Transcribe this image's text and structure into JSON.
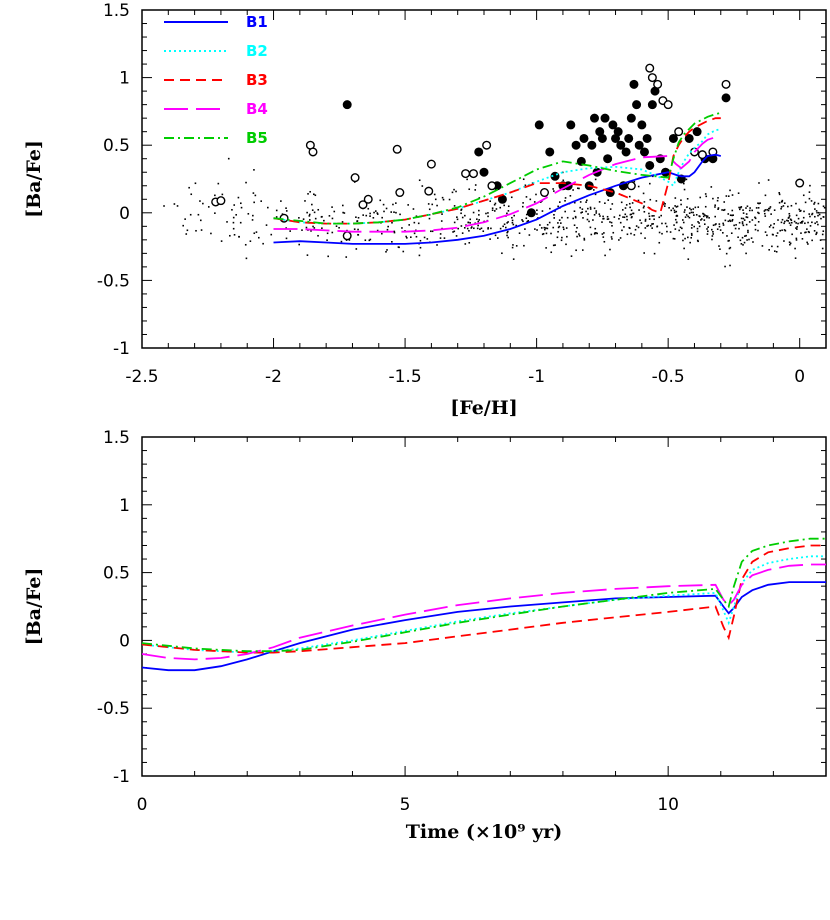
{
  "figure": {
    "width": 830,
    "height": 920
  },
  "chart_data": [
    {
      "type": "scatter",
      "id": "top",
      "title": "",
      "xlabel": "[Fe/H]",
      "ylabel": "[Ba/Fe]",
      "xlim": [
        -2.5,
        0.1
      ],
      "ylim": [
        -1,
        1.5
      ],
      "xticks": [
        -2.5,
        -2,
        -1.5,
        -1,
        -0.5,
        0
      ],
      "xtick_labels": [
        "-2.5",
        "-2",
        "-1.5",
        "-1",
        "-0.5",
        "0"
      ],
      "yticks": [
        -1,
        -0.5,
        0,
        0.5,
        1,
        1.5
      ],
      "ytick_labels": [
        "-1",
        "-0.5",
        "0",
        "0.5",
        "1",
        "1.5"
      ],
      "legend": [
        {
          "name": "B1",
          "color": "#0000ff",
          "dash": "solid"
        },
        {
          "name": "B2",
          "color": "#00ffff",
          "dash": "dotted"
        },
        {
          "name": "B3",
          "color": "#ff0000",
          "dash": "dashed"
        },
        {
          "name": "B4",
          "color": "#ff00ff",
          "dash": "longdash"
        },
        {
          "name": "B5",
          "color": "#00cc00",
          "dash": "dashdot"
        }
      ],
      "series": [
        {
          "name": "B1",
          "x": [
            -2.0,
            -1.9,
            -1.8,
            -1.7,
            -1.6,
            -1.5,
            -1.4,
            -1.3,
            -1.2,
            -1.1,
            -1.0,
            -0.9,
            -0.8,
            -0.7,
            -0.6,
            -0.5,
            -0.47,
            -0.45,
            -0.42,
            -0.4,
            -0.37,
            -0.35,
            -0.32,
            -0.3
          ],
          "y": [
            -0.22,
            -0.21,
            -0.22,
            -0.23,
            -0.23,
            -0.23,
            -0.22,
            -0.2,
            -0.17,
            -0.12,
            -0.05,
            0.05,
            0.13,
            0.2,
            0.26,
            0.3,
            0.28,
            0.27,
            0.27,
            0.3,
            0.38,
            0.42,
            0.43,
            0.42
          ]
        },
        {
          "name": "B2",
          "x": [
            -2.0,
            -1.9,
            -1.8,
            -1.7,
            -1.6,
            -1.5,
            -1.4,
            -1.3,
            -1.2,
            -1.1,
            -1.0,
            -0.9,
            -0.8,
            -0.7,
            -0.6,
            -0.55,
            -0.5,
            -0.48,
            -0.46,
            -0.44,
            -0.42,
            -0.4,
            -0.37,
            -0.35,
            -0.32,
            -0.3
          ],
          "y": [
            -0.04,
            -0.07,
            -0.08,
            -0.08,
            -0.07,
            -0.05,
            -0.01,
            0.03,
            0.09,
            0.15,
            0.23,
            0.3,
            0.33,
            0.34,
            0.32,
            0.28,
            0.23,
            0.2,
            0.3,
            0.38,
            0.44,
            0.48,
            0.53,
            0.58,
            0.61,
            0.62
          ]
        },
        {
          "name": "B3",
          "x": [
            -2.0,
            -1.9,
            -1.8,
            -1.7,
            -1.6,
            -1.5,
            -1.4,
            -1.3,
            -1.2,
            -1.1,
            -1.0,
            -0.9,
            -0.8,
            -0.7,
            -0.6,
            -0.56,
            -0.53,
            -0.5,
            -0.48,
            -0.46,
            -0.44,
            -0.42,
            -0.4,
            -0.37,
            -0.35,
            -0.32,
            -0.3
          ],
          "y": [
            -0.04,
            -0.07,
            -0.08,
            -0.08,
            -0.07,
            -0.05,
            -0.01,
            0.03,
            0.09,
            0.15,
            0.22,
            0.22,
            0.2,
            0.15,
            0.07,
            0.02,
            0.0,
            0.22,
            0.42,
            0.5,
            0.56,
            0.6,
            0.63,
            0.66,
            0.68,
            0.7,
            0.7
          ]
        },
        {
          "name": "B4",
          "x": [
            -2.0,
            -1.9,
            -1.8,
            -1.7,
            -1.6,
            -1.5,
            -1.4,
            -1.3,
            -1.2,
            -1.1,
            -1.0,
            -0.9,
            -0.8,
            -0.7,
            -0.6,
            -0.5,
            -0.47,
            -0.45,
            -0.42,
            -0.4,
            -0.37,
            -0.35,
            -0.32,
            -0.3
          ],
          "y": [
            -0.12,
            -0.12,
            -0.13,
            -0.14,
            -0.14,
            -0.14,
            -0.13,
            -0.11,
            -0.07,
            -0.01,
            0.07,
            0.18,
            0.28,
            0.36,
            0.41,
            0.42,
            0.36,
            0.33,
            0.38,
            0.45,
            0.51,
            0.54,
            0.56,
            0.55
          ]
        },
        {
          "name": "B5",
          "x": [
            -2.0,
            -1.9,
            -1.8,
            -1.7,
            -1.6,
            -1.5,
            -1.4,
            -1.3,
            -1.2,
            -1.1,
            -1.0,
            -0.9,
            -0.8,
            -0.7,
            -0.6,
            -0.5,
            -0.48,
            -0.46,
            -0.44,
            -0.42,
            -0.4,
            -0.37,
            -0.35,
            -0.32,
            -0.3
          ],
          "y": [
            -0.04,
            -0.06,
            -0.08,
            -0.08,
            -0.07,
            -0.05,
            -0.01,
            0.04,
            0.12,
            0.22,
            0.32,
            0.38,
            0.35,
            0.31,
            0.28,
            0.26,
            0.4,
            0.52,
            0.58,
            0.62,
            0.66,
            0.69,
            0.71,
            0.73,
            0.74
          ]
        },
        {
          "name": "filled",
          "marker": "filled-circle",
          "x": [
            -1.72,
            -1.22,
            -1.2,
            -1.15,
            -1.13,
            -1.02,
            -0.99,
            -0.95,
            -0.93,
            -0.9,
            -0.88,
            -0.87,
            -0.85,
            -0.83,
            -0.82,
            -0.8,
            -0.79,
            -0.78,
            -0.77,
            -0.76,
            -0.75,
            -0.74,
            -0.73,
            -0.72,
            -0.71,
            -0.7,
            -0.69,
            -0.68,
            -0.67,
            -0.66,
            -0.65,
            -0.64,
            -0.63,
            -0.62,
            -0.61,
            -0.6,
            -0.59,
            -0.58,
            -0.57,
            -0.56,
            -0.55,
            -0.53,
            -0.51,
            -0.48,
            -0.45,
            -0.42,
            -0.39,
            -0.36,
            -0.33,
            -0.28
          ],
          "y": [
            0.8,
            0.45,
            0.3,
            0.2,
            0.1,
            0.0,
            0.65,
            0.45,
            0.27,
            0.2,
            0.2,
            0.65,
            0.5,
            0.38,
            0.55,
            0.2,
            0.5,
            0.7,
            0.3,
            0.6,
            0.55,
            0.7,
            0.4,
            0.15,
            0.65,
            0.55,
            0.6,
            0.5,
            0.2,
            0.45,
            0.55,
            0.7,
            0.95,
            0.8,
            0.5,
            0.65,
            0.45,
            0.55,
            0.35,
            0.8,
            0.9,
            0.4,
            0.3,
            0.55,
            0.25,
            0.55,
            0.6,
            0.4,
            0.4,
            0.85
          ]
        },
        {
          "name": "open",
          "marker": "open-circle",
          "x": [
            -2.22,
            -2.2,
            -1.96,
            -1.86,
            -1.85,
            -1.72,
            -1.69,
            -1.66,
            -1.64,
            -1.53,
            -1.52,
            -1.41,
            -1.4,
            -1.27,
            -1.24,
            -1.19,
            -1.17,
            -0.97,
            -0.64,
            -0.57,
            -0.56,
            -0.54,
            -0.52,
            -0.5,
            -0.46,
            -0.4,
            -0.37,
            -0.33,
            -0.28,
            0.0
          ],
          "y": [
            0.08,
            0.09,
            -0.04,
            0.5,
            0.45,
            -0.17,
            0.26,
            0.06,
            0.1,
            0.47,
            0.15,
            0.16,
            0.36,
            0.29,
            0.29,
            0.5,
            0.2,
            0.15,
            0.2,
            1.07,
            1.0,
            0.95,
            0.83,
            0.8,
            0.6,
            0.45,
            0.43,
            0.45,
            0.95,
            0.22
          ]
        },
        {
          "name": "dots",
          "marker": "dot",
          "n_points": 900,
          "x_range": [
            -2.5,
            0.1
          ],
          "y_range": [
            -0.75,
            0.8
          ]
        }
      ]
    },
    {
      "type": "line",
      "id": "bottom",
      "title": "",
      "xlabel": "Time (×10⁹ yr)",
      "ylabel": "[Ba/Fe]",
      "xlim": [
        0,
        13
      ],
      "ylim": [
        -1,
        1.5
      ],
      "xticks": [
        0,
        5,
        10
      ],
      "xtick_labels": [
        "0",
        "5",
        "10"
      ],
      "yticks": [
        -1,
        -0.5,
        0,
        0.5,
        1,
        1.5
      ],
      "ytick_labels": [
        "-1",
        "-0.5",
        "0",
        "0.5",
        "1",
        "1.5"
      ],
      "series": [
        {
          "name": "B1",
          "color": "#0000ff",
          "dash": "solid",
          "x": [
            0,
            0.5,
            1,
            1.5,
            2,
            2.5,
            3,
            4,
            5,
            6,
            7,
            8,
            9,
            10,
            10.9,
            11.05,
            11.15,
            11.25,
            11.4,
            11.6,
            11.9,
            12.3,
            12.7,
            13
          ],
          "y": [
            -0.2,
            -0.22,
            -0.22,
            -0.19,
            -0.14,
            -0.08,
            -0.02,
            0.08,
            0.15,
            0.21,
            0.25,
            0.28,
            0.31,
            0.32,
            0.33,
            0.25,
            0.2,
            0.24,
            0.32,
            0.37,
            0.41,
            0.43,
            0.43,
            0.43
          ]
        },
        {
          "name": "B2",
          "color": "#00ffff",
          "dash": "dotted",
          "x": [
            0,
            0.5,
            1,
            1.5,
            2,
            2.5,
            3,
            4,
            5,
            6,
            7,
            8,
            9,
            10,
            10.9,
            11.05,
            11.15,
            11.25,
            11.4,
            11.6,
            11.9,
            12.3,
            12.7,
            13
          ],
          "y": [
            -0.03,
            -0.05,
            -0.07,
            -0.08,
            -0.09,
            -0.08,
            -0.06,
            0.0,
            0.07,
            0.14,
            0.2,
            0.25,
            0.3,
            0.33,
            0.35,
            0.22,
            0.13,
            0.25,
            0.42,
            0.52,
            0.57,
            0.6,
            0.62,
            0.62
          ]
        },
        {
          "name": "B3",
          "color": "#ff0000",
          "dash": "dashed",
          "x": [
            0,
            0.5,
            1,
            1.5,
            2,
            2.5,
            3,
            4,
            5,
            6,
            7,
            8,
            9,
            10,
            10.9,
            11.05,
            11.15,
            11.25,
            11.4,
            11.6,
            11.9,
            12.3,
            12.7,
            13
          ],
          "y": [
            -0.03,
            -0.05,
            -0.07,
            -0.08,
            -0.09,
            -0.09,
            -0.08,
            -0.05,
            -0.02,
            0.03,
            0.08,
            0.13,
            0.17,
            0.21,
            0.25,
            0.1,
            0.02,
            0.18,
            0.45,
            0.58,
            0.65,
            0.68,
            0.7,
            0.7
          ]
        },
        {
          "name": "B4",
          "color": "#ff00ff",
          "dash": "longdash",
          "x": [
            0,
            0.5,
            1,
            1.5,
            2,
            2.5,
            3,
            4,
            5,
            6,
            7,
            8,
            9,
            10,
            10.9,
            11.05,
            11.15,
            11.25,
            11.4,
            11.6,
            11.9,
            12.3,
            12.7,
            13
          ],
          "y": [
            -0.1,
            -0.13,
            -0.14,
            -0.13,
            -0.1,
            -0.05,
            0.02,
            0.11,
            0.19,
            0.26,
            0.31,
            0.35,
            0.38,
            0.4,
            0.41,
            0.3,
            0.26,
            0.3,
            0.41,
            0.48,
            0.52,
            0.55,
            0.56,
            0.56
          ]
        },
        {
          "name": "B5",
          "color": "#00cc00",
          "dash": "dashdot",
          "x": [
            0,
            0.5,
            1,
            1.5,
            2,
            2.5,
            3,
            4,
            5,
            6,
            7,
            8,
            9,
            10,
            10.9,
            11.05,
            11.15,
            11.25,
            11.4,
            11.6,
            11.9,
            12.3,
            12.7,
            13
          ],
          "y": [
            -0.02,
            -0.04,
            -0.06,
            -0.07,
            -0.08,
            -0.08,
            -0.07,
            -0.01,
            0.06,
            0.13,
            0.19,
            0.25,
            0.3,
            0.35,
            0.38,
            0.3,
            0.25,
            0.4,
            0.58,
            0.66,
            0.7,
            0.73,
            0.75,
            0.75
          ]
        }
      ]
    }
  ]
}
